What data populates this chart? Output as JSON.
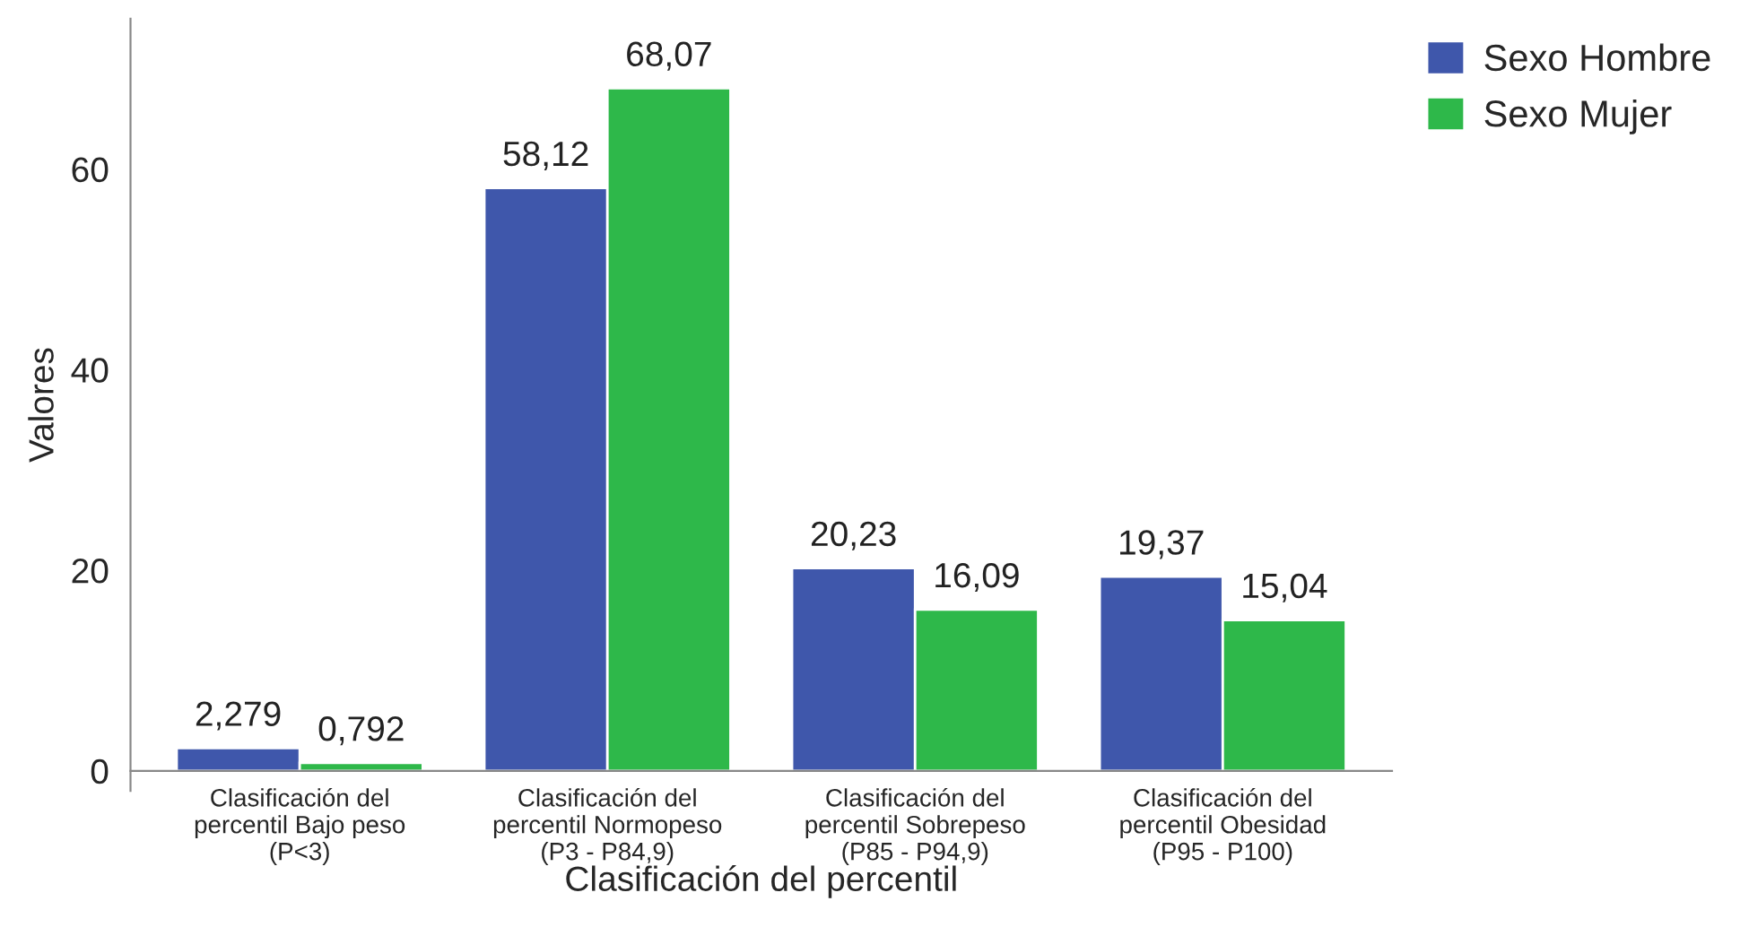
{
  "chart_data": {
    "type": "bar",
    "xlabel": "Clasificación del percentil",
    "ylabel": "Valores",
    "categories": [
      "Clasificación del\npercentil Bajo peso\n(P<3)",
      "Clasificación del\npercentil Normopeso\n(P3 - P84,9)",
      "Clasificación del\npercentil Sobrepeso\n(P85 - P94,9)",
      "Clasificación del\npercentil Obesidad\n(P95 - P100)"
    ],
    "series": [
      {
        "name": "Sexo Hombre",
        "color": "#3f57ab",
        "values": [
          2.279,
          58.12,
          20.23,
          19.37
        ],
        "value_labels": [
          "2,279",
          "58,12",
          "20,23",
          "19,37"
        ]
      },
      {
        "name": "Sexo Mujer",
        "color": "#2eb84a",
        "values": [
          0.792,
          68.07,
          16.09,
          15.04
        ],
        "value_labels": [
          "0,792",
          "68,07",
          "16,09",
          "15,04"
        ]
      }
    ],
    "ylim": [
      -2,
      75
    ],
    "yticks": [
      0,
      20,
      40,
      60
    ],
    "grid": false,
    "legend": "top right"
  }
}
